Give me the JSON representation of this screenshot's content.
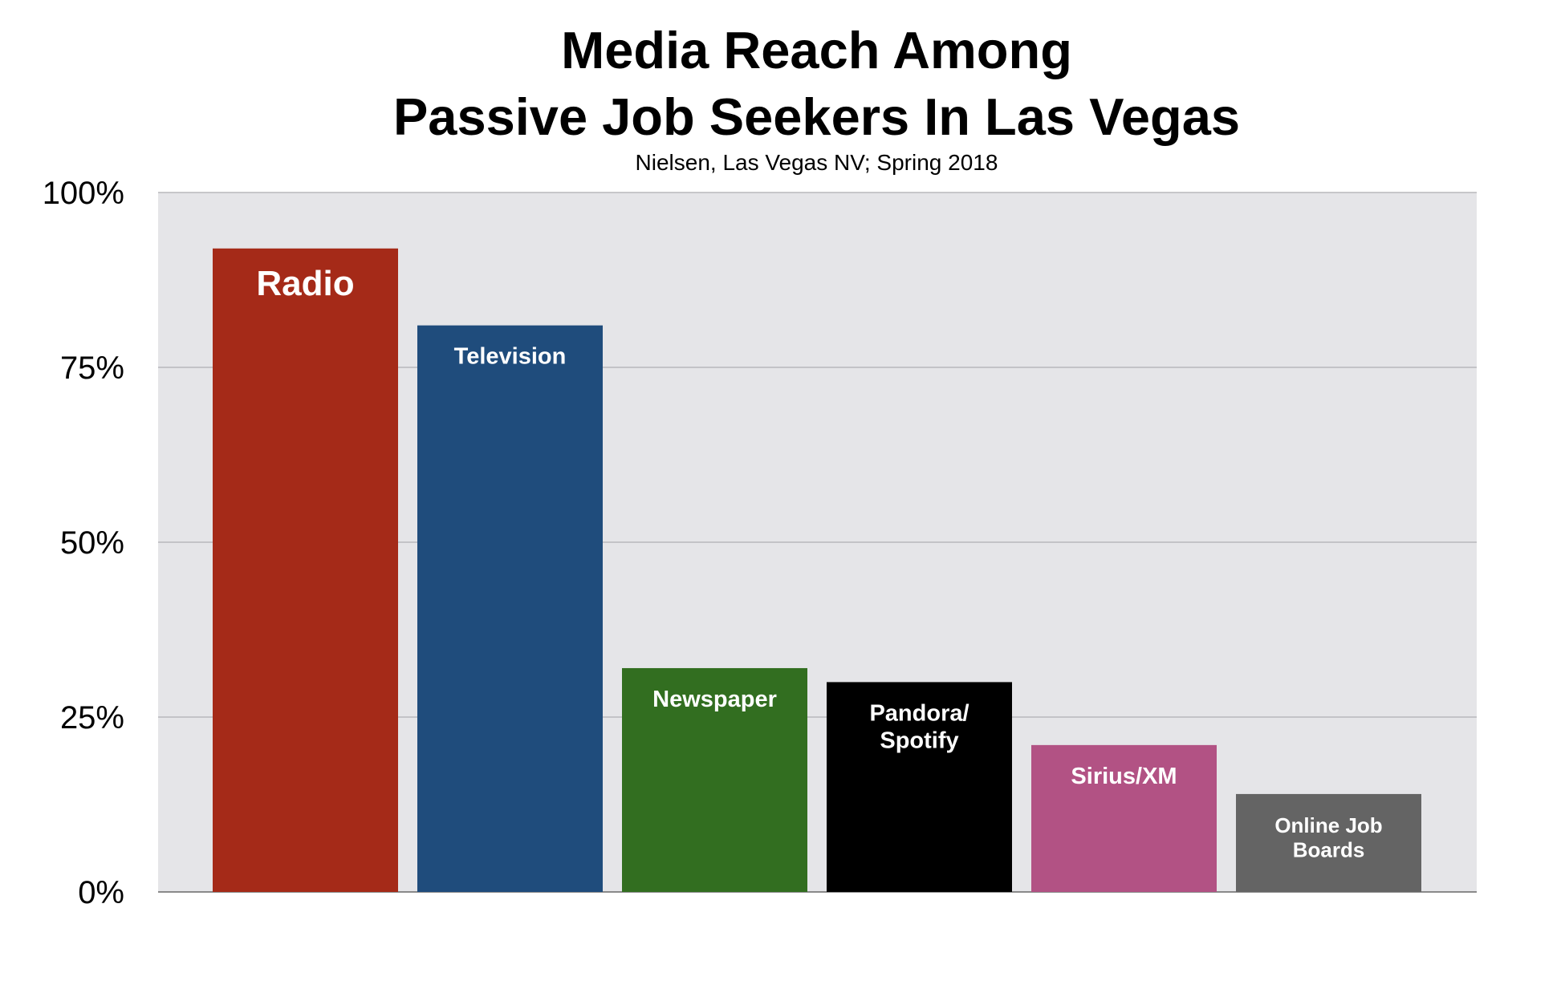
{
  "title": [
    "Media Reach Among",
    "Passive Job Seekers In Las Vegas"
  ],
  "subtitle": "Nielsen, Las Vegas NV; Spring 2018",
  "chart_data": {
    "type": "bar",
    "title": "Media Reach Among Passive Job Seekers In Las Vegas",
    "subtitle": "Nielsen, Las Vegas NV; Spring 2018",
    "categories": [
      "Radio",
      "Television",
      "Newspaper",
      "Pandora/\nSpotify",
      "Sirius/XM",
      "Online Job\nBoards"
    ],
    "values": [
      92,
      81,
      32,
      30,
      21,
      14
    ],
    "colors": [
      "#a52a18",
      "#1f4c7c",
      "#326e20",
      "#000000",
      "#b25284",
      "#646464"
    ],
    "ylim": [
      0,
      100
    ],
    "yticks": [
      "0%",
      "25%",
      "50%",
      "75%",
      "100%"
    ],
    "ytick_values": [
      0,
      25,
      50,
      75,
      100
    ],
    "plot_background": "#e5e5e8",
    "grid": true,
    "legend": "none",
    "bar_labels_inside": true
  }
}
